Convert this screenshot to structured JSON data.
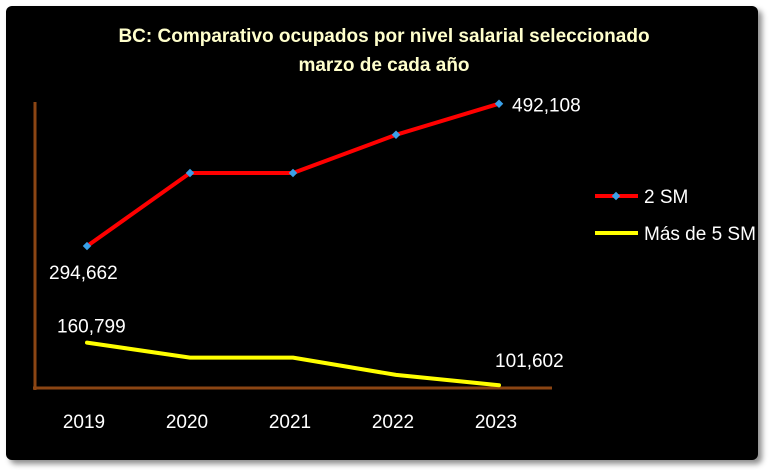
{
  "chart_data": {
    "type": "line",
    "title": "BC: Comparativo ocupados por nivel salarial seleccionado",
    "subtitle": "marzo de cada año",
    "categories": [
      "2019",
      "2020",
      "2021",
      "2022",
      "2023"
    ],
    "series": [
      {
        "name": "2 SM",
        "values": [
          294662,
          396000,
          396000,
          449000,
          492108
        ],
        "color": "#ff0000",
        "marker_color": "#3aa0e8"
      },
      {
        "name": "Más de 5 SM",
        "values": [
          160799,
          140000,
          140000,
          116000,
          101602
        ],
        "color": "#ffff00"
      }
    ],
    "data_labels": [
      {
        "series": 0,
        "index": 0,
        "text": "294,662"
      },
      {
        "series": 0,
        "index": 4,
        "text": "492,108"
      },
      {
        "series": 1,
        "index": 0,
        "text": "160,799"
      },
      {
        "series": 1,
        "index": 4,
        "text": "101,602"
      }
    ],
    "ylim": [
      95000,
      525000
    ],
    "grid": false,
    "legend_position": "right",
    "axis_color": "#8b4513"
  }
}
